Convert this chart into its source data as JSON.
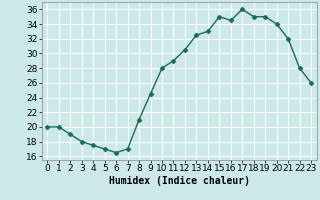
{
  "x": [
    0,
    1,
    2,
    3,
    4,
    5,
    6,
    7,
    8,
    9,
    10,
    11,
    12,
    13,
    14,
    15,
    16,
    17,
    18,
    19,
    20,
    21,
    22,
    23
  ],
  "y": [
    20,
    20,
    19,
    18,
    17.5,
    17,
    16.5,
    17,
    21,
    24.5,
    28,
    29,
    30.5,
    32.5,
    33,
    35,
    34.5,
    36,
    35,
    35,
    34,
    32,
    28,
    26
  ],
  "line_color": "#1a6b5a",
  "marker": "D",
  "marker_size": 2.5,
  "bg_color": "#cce8e8",
  "grid_color": "#ffffff",
  "xlabel": "Humidex (Indice chaleur)",
  "xlim": [
    -0.5,
    23.5
  ],
  "ylim": [
    15.5,
    37
  ],
  "yticks": [
    16,
    18,
    20,
    22,
    24,
    26,
    28,
    30,
    32,
    34,
    36
  ],
  "xticks": [
    0,
    1,
    2,
    3,
    4,
    5,
    6,
    7,
    8,
    9,
    10,
    11,
    12,
    13,
    14,
    15,
    16,
    17,
    18,
    19,
    20,
    21,
    22,
    23
  ],
  "xlabel_fontsize": 7,
  "tick_fontsize": 6.5,
  "linewidth": 1.0
}
